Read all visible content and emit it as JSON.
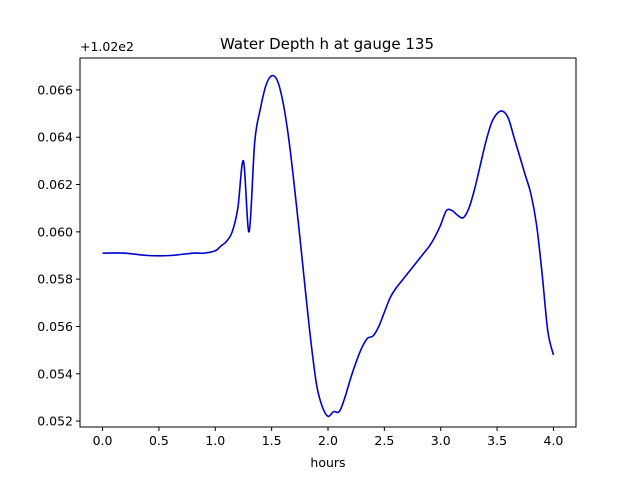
{
  "chart_data": {
    "type": "line",
    "title": "Water Depth h at gauge 135",
    "xlabel": "hours",
    "ylabel": "",
    "offset_label": "+1.02e2",
    "xlim": [
      -0.2,
      4.2
    ],
    "ylim": [
      0.05175,
      0.06735
    ],
    "xticks": [
      0.0,
      0.5,
      1.0,
      1.5,
      2.0,
      2.5,
      3.0,
      3.5,
      4.0
    ],
    "xtick_labels": [
      "0.0",
      "0.5",
      "1.0",
      "1.5",
      "2.0",
      "2.5",
      "3.0",
      "3.5",
      "4.0"
    ],
    "yticks": [
      0.052,
      0.054,
      0.056,
      0.058,
      0.06,
      0.062,
      0.064,
      0.066
    ],
    "ytick_labels": [
      "0.052",
      "0.054",
      "0.056",
      "0.058",
      "0.060",
      "0.062",
      "0.064",
      "0.066"
    ],
    "grid": false,
    "series": [
      {
        "color": "#0000cc",
        "x": [
          0.0,
          0.2,
          0.4,
          0.6,
          0.8,
          0.9,
          1.0,
          1.05,
          1.1,
          1.15,
          1.2,
          1.25,
          1.3,
          1.35,
          1.4,
          1.45,
          1.5,
          1.55,
          1.6,
          1.65,
          1.7,
          1.75,
          1.8,
          1.85,
          1.9,
          1.95,
          2.0,
          2.05,
          2.1,
          2.15,
          2.2,
          2.25,
          2.3,
          2.35,
          2.4,
          2.45,
          2.5,
          2.55,
          2.6,
          2.65,
          2.7,
          2.75,
          2.8,
          2.85,
          2.9,
          2.95,
          3.0,
          3.05,
          3.1,
          3.15,
          3.2,
          3.25,
          3.3,
          3.35,
          3.4,
          3.45,
          3.5,
          3.55,
          3.6,
          3.65,
          3.7,
          3.75,
          3.8,
          3.85,
          3.9,
          3.95,
          4.0
        ],
        "y": [
          0.0591,
          0.0591,
          0.059,
          0.059,
          0.0591,
          0.0591,
          0.0592,
          0.0594,
          0.0596,
          0.06,
          0.061,
          0.063,
          0.06,
          0.0638,
          0.0652,
          0.0662,
          0.0666,
          0.0664,
          0.0655,
          0.064,
          0.062,
          0.0598,
          0.0575,
          0.0553,
          0.0535,
          0.0526,
          0.0522,
          0.0524,
          0.0524,
          0.053,
          0.0538,
          0.0545,
          0.0551,
          0.0555,
          0.0556,
          0.056,
          0.0566,
          0.0572,
          0.0576,
          0.0579,
          0.0582,
          0.0585,
          0.0588,
          0.0591,
          0.0594,
          0.0598,
          0.0603,
          0.0609,
          0.0609,
          0.0607,
          0.0606,
          0.061,
          0.0618,
          0.0628,
          0.0638,
          0.0646,
          0.065,
          0.0651,
          0.0648,
          0.064,
          0.0632,
          0.0624,
          0.0616,
          0.0603,
          0.0582,
          0.0558,
          0.0548
        ]
      }
    ]
  }
}
